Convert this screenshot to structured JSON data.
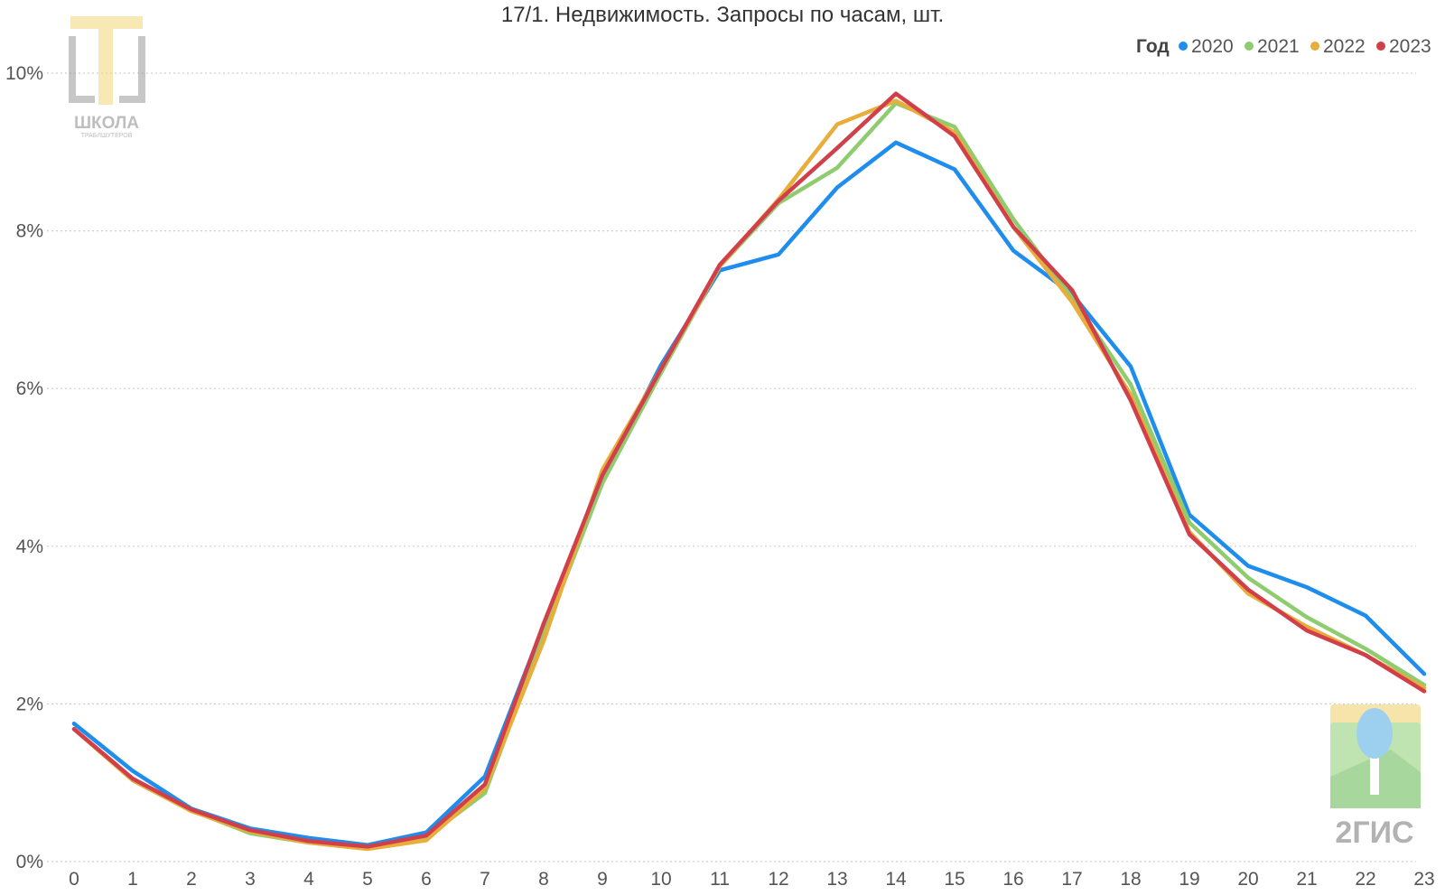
{
  "colors": {
    "2020": "#1f8ded",
    "2021": "#8fcc6f",
    "2022": "#e8ad3a",
    "2023": "#d1404a",
    "grid": "#cfcfcf",
    "text": "#555555"
  },
  "logos": {
    "school": {
      "name": "school-logo",
      "line1": "ШКОЛА",
      "line2": "ТРАБЛШУТЕРОВ"
    },
    "twogis": {
      "name": "2gis-logo",
      "text": "2ГИС"
    }
  },
  "chart_data": {
    "type": "line",
    "title": "17/1. Недвижимость. Запросы по часам, шт.",
    "legend_title": "Год",
    "legend_position": "top-right",
    "grid": true,
    "x": [
      0,
      1,
      2,
      3,
      4,
      5,
      6,
      7,
      8,
      9,
      10,
      11,
      12,
      13,
      14,
      15,
      16,
      17,
      18,
      19,
      20,
      21,
      22,
      23
    ],
    "x_tick_labels": [
      "0",
      "1",
      "2",
      "3",
      "4",
      "5",
      "6",
      "7",
      "8",
      "9",
      "10",
      "11",
      "12",
      "13",
      "14",
      "15",
      "16",
      "17",
      "18",
      "19",
      "20",
      "21",
      "22",
      "23"
    ],
    "ylim": [
      0,
      10
    ],
    "y_ticks": [
      0,
      2,
      4,
      6,
      8,
      10
    ],
    "y_tick_labels": [
      "0%",
      "2%",
      "4%",
      "6%",
      "8%",
      "10%"
    ],
    "series": [
      {
        "name": "2020",
        "values": [
          1.75,
          1.15,
          0.67,
          0.42,
          0.3,
          0.21,
          0.37,
          1.08,
          3.0,
          4.85,
          6.3,
          7.5,
          7.7,
          8.55,
          9.12,
          8.78,
          7.75,
          7.2,
          6.28,
          4.4,
          3.75,
          3.48,
          3.12,
          2.38
        ]
      },
      {
        "name": "2021",
        "values": [
          1.68,
          1.05,
          0.65,
          0.36,
          0.24,
          0.18,
          0.31,
          0.87,
          2.88,
          4.8,
          6.2,
          7.55,
          8.35,
          8.8,
          9.62,
          9.32,
          8.15,
          7.15,
          6.05,
          4.3,
          3.6,
          3.1,
          2.7,
          2.24
        ]
      },
      {
        "name": "2022",
        "values": [
          1.68,
          1.03,
          0.64,
          0.38,
          0.24,
          0.16,
          0.27,
          0.93,
          2.8,
          4.97,
          6.25,
          7.55,
          8.4,
          9.35,
          9.65,
          9.25,
          8.05,
          7.1,
          5.92,
          4.18,
          3.4,
          2.98,
          2.62,
          2.2
        ]
      },
      {
        "name": "2023",
        "values": [
          1.68,
          1.05,
          0.66,
          0.4,
          0.26,
          0.19,
          0.33,
          0.98,
          3.02,
          4.9,
          6.25,
          7.57,
          8.38,
          9.05,
          9.74,
          9.2,
          8.05,
          7.25,
          5.85,
          4.15,
          3.45,
          2.93,
          2.62,
          2.16
        ]
      }
    ]
  }
}
